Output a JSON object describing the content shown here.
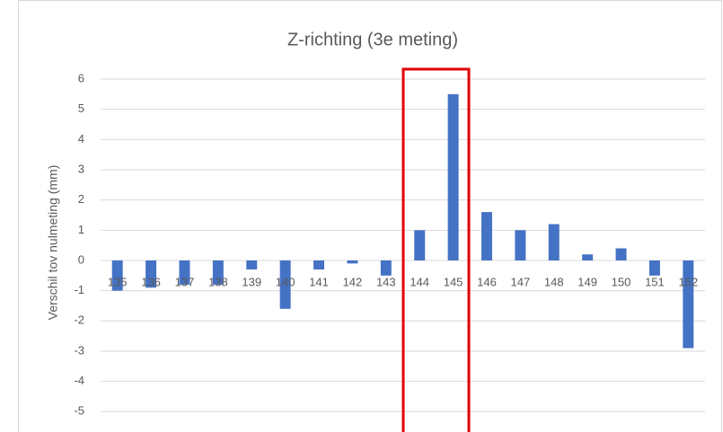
{
  "chart_data": {
    "type": "bar",
    "title": "Z-richting (3e meting)",
    "y_label": "Verschil tov nulmeting (mm)",
    "categories": [
      "135",
      "136",
      "137",
      "138",
      "139",
      "140",
      "141",
      "142",
      "143",
      "144",
      "145",
      "146",
      "147",
      "148",
      "149",
      "150",
      "151",
      "152"
    ],
    "values": [
      -1.0,
      -0.9,
      -0.8,
      -0.8,
      -0.3,
      -1.6,
      -0.3,
      -0.1,
      -0.5,
      1.0,
      5.5,
      1.6,
      1.0,
      1.2,
      0.2,
      0.4,
      -0.5,
      -2.9
    ],
    "color": "#4472c4",
    "ylim": [
      -5.6,
      6
    ],
    "yticks": [
      -5,
      -4,
      -3,
      -2,
      -1,
      0,
      1,
      2,
      3,
      4,
      5,
      6
    ],
    "grid": true
  }
}
